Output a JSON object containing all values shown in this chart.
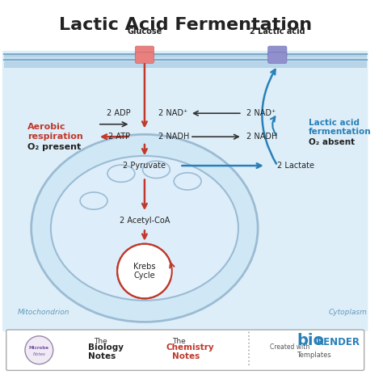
{
  "title": "Lactic Acid Fermentation",
  "title_fontsize": 16,
  "title_fontweight": "bold",
  "bg_color": "#ffffff",
  "cell_bg": "#ddeeff",
  "mito_bg": "#c8dff0",
  "cytoplasm_label": "Cytoplasm",
  "mitochondrion_label": "Mitochondrion",
  "glucose_label": "Glucose",
  "lactic_acid_label": "2 Lactic acid",
  "labels": {
    "adp": "2 ADP",
    "atp": "2 ATP",
    "nad_plus_left": "2 NAD⁺",
    "nad_plus_right": "2 NAD⁺",
    "nadh_left": "2 NADH",
    "nadh_right": "2 NADH",
    "pyruvate": "2 Pyruvate",
    "lactate": "2 Lactate",
    "acetylcoa": "2 Acetyl-CoA",
    "krebs": "Krebs\nCycle"
  },
  "aerobic_label": "Aerobic\nrespiration\nO₂ present",
  "lactic_label": "Lactic acid\nfermentation\nO₂ absent",
  "arrow_red": "#c0392b",
  "arrow_blue": "#2980b9",
  "arrow_dark": "#333333",
  "text_red": "#c0392b",
  "text_blue": "#2980b9",
  "text_dark": "#222222",
  "membrane_color": "#aaccee",
  "transporter_red": "#e88080",
  "transporter_blue": "#9090cc",
  "footer_border": "#aaaaaa"
}
